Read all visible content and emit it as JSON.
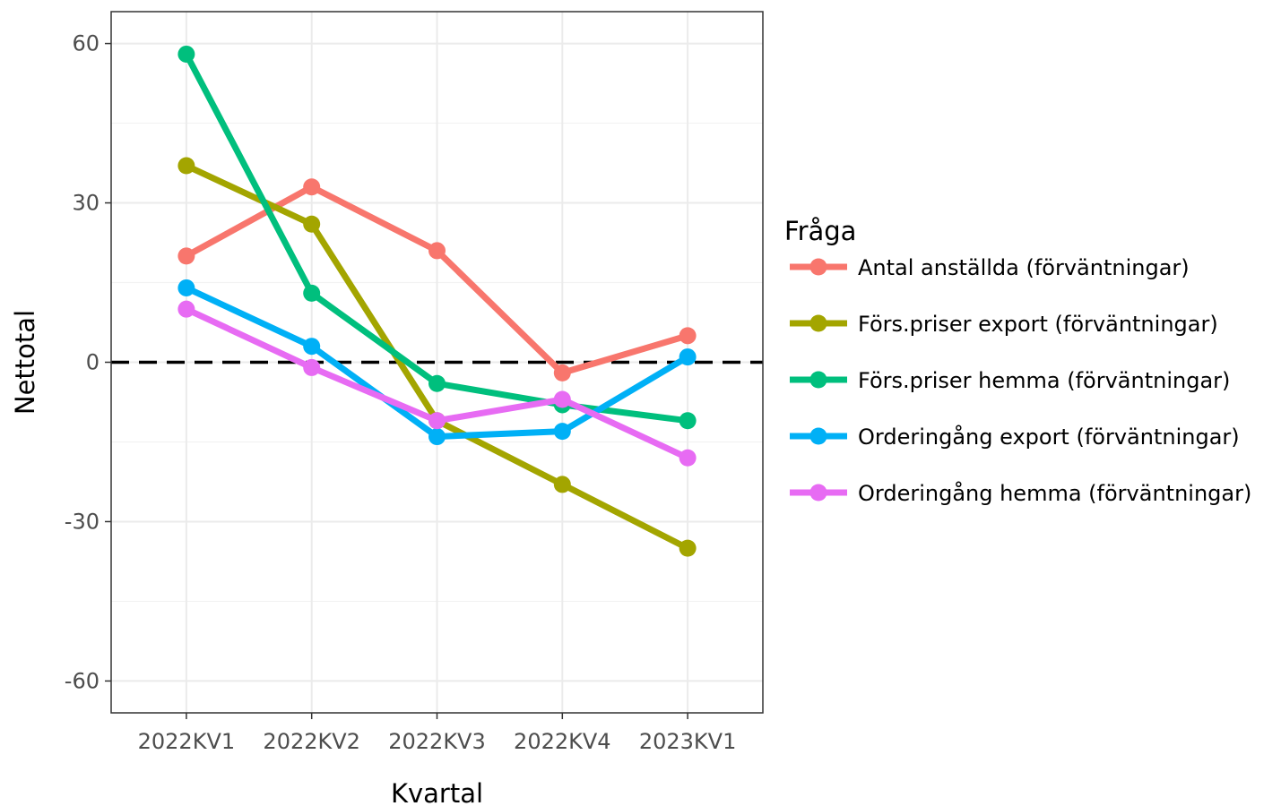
{
  "chart_data": {
    "type": "line",
    "categories": [
      "2022KV1",
      "2022KV2",
      "2022KV3",
      "2022KV4",
      "2023KV1"
    ],
    "xlabel": "Kvartal",
    "ylabel": "Nettotal",
    "ylim": [
      -66,
      66
    ],
    "yticks": [
      60,
      30,
      0,
      -30,
      -60
    ],
    "ytick_labels": [
      "60",
      "30",
      "0",
      "-30",
      "-60"
    ],
    "grid": true,
    "reference_line": {
      "y": 0,
      "style": "dashed",
      "color": "#000000"
    },
    "legend": {
      "title": "Fråga",
      "position": "right"
    },
    "series": [
      {
        "name": "Antal anställda (förväntningar)",
        "color": "#F8766D",
        "values": [
          20,
          33,
          21,
          -2,
          5
        ]
      },
      {
        "name": "Förs.priser export (förväntningar)",
        "color": "#A3A500",
        "values": [
          37,
          26,
          -11,
          -23,
          -35
        ]
      },
      {
        "name": "Förs.priser hemma (förväntningar)",
        "color": "#00BF7D",
        "values": [
          58,
          13,
          -4,
          -8,
          -11
        ]
      },
      {
        "name": "Orderingång export (förväntningar)",
        "color": "#00B0F6",
        "values": [
          14,
          3,
          -14,
          -13,
          1
        ]
      },
      {
        "name": "Orderingång hemma (förväntningar)",
        "color": "#E76BF3",
        "values": [
          10,
          -1,
          -11,
          -7,
          -18
        ]
      }
    ]
  }
}
